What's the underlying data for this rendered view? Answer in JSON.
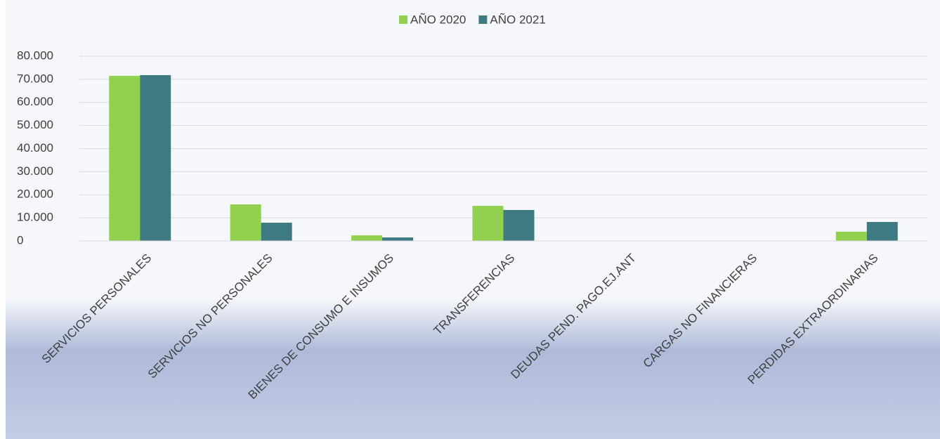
{
  "chart_data": {
    "type": "bar",
    "categories": [
      "SERVICIOS PERSONALES",
      "SERVICIOS NO PERSONALES",
      "BIENES DE CONSUMO E INSUMOS",
      "TRANSFERENCIAS",
      "DEUDAS PEND. PAGO.EJ.ANT",
      "CARGAS NO FINANCIERAS",
      "PERDIDAS EXTRAORDINARIAS"
    ],
    "series": [
      {
        "name": "AÑO 2020",
        "color": "#92d050",
        "values": [
          71500,
          15800,
          2400,
          15200,
          0,
          0,
          4000
        ]
      },
      {
        "name": "AÑO 2021",
        "color": "#3e7a82",
        "values": [
          71800,
          7900,
          1500,
          13400,
          0,
          0,
          8200
        ]
      }
    ],
    "ylim": [
      0,
      80000
    ],
    "yticks": [
      0,
      {
        "value": 10000,
        "label": "10.000"
      },
      {
        "value": 20000,
        "label": "20.000"
      },
      {
        "value": 30000,
        "label": "30.000"
      },
      {
        "value": 40000,
        "label": "40.000"
      },
      {
        "value": 50000,
        "label": "50.000"
      },
      {
        "value": 60000,
        "label": "60.000"
      },
      {
        "value": 70000,
        "label": "70.000"
      },
      {
        "value": 80000,
        "label": "80.000"
      }
    ],
    "grid": true,
    "legend": "top"
  }
}
